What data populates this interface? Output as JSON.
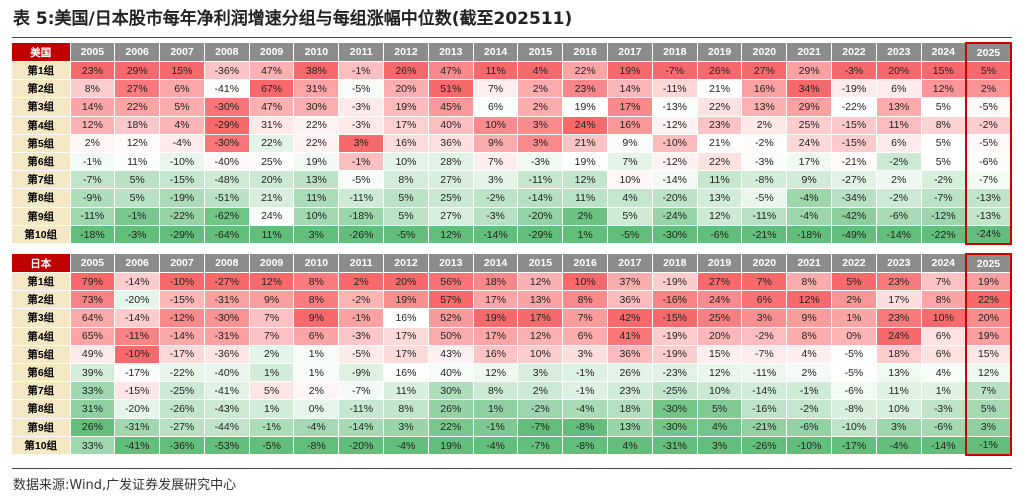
{
  "title": "表 5:美国/日本股市每年净利润增速分组与每组涨幅中位数(截至202511)",
  "years": [
    "2005",
    "2006",
    "2007",
    "2008",
    "2009",
    "2010",
    "2011",
    "2012",
    "2013",
    "2014",
    "2015",
    "2016",
    "2017",
    "2018",
    "2019",
    "2020",
    "2021",
    "2022",
    "2023",
    "2024",
    "2025"
  ],
  "tables": [
    {
      "label": "美国",
      "rows": [
        {
          "label": "第1组",
          "values": [
            23,
            29,
            15,
            -36,
            47,
            38,
            -1,
            26,
            47,
            11,
            4,
            22,
            19,
            -7,
            26,
            27,
            29,
            -3,
            20,
            15,
            5
          ]
        },
        {
          "label": "第2组",
          "values": [
            8,
            27,
            6,
            -41,
            67,
            31,
            -5,
            20,
            51,
            7,
            2,
            23,
            14,
            -11,
            21,
            16,
            34,
            -19,
            6,
            12,
            2
          ]
        },
        {
          "label": "第3组",
          "values": [
            14,
            22,
            5,
            -30,
            47,
            30,
            -3,
            19,
            45,
            6,
            2,
            19,
            17,
            -13,
            22,
            13,
            29,
            -22,
            13,
            5,
            -5
          ]
        },
        {
          "label": "第4组",
          "values": [
            12,
            18,
            4,
            -29,
            31,
            22,
            -3,
            17,
            40,
            10,
            3,
            24,
            16,
            -12,
            23,
            2,
            25,
            -15,
            11,
            8,
            -2
          ]
        },
        {
          "label": "第5组",
          "values": [
            2,
            12,
            -4,
            -30,
            22,
            22,
            3,
            16,
            36,
            9,
            3,
            21,
            9,
            -10,
            21,
            -2,
            24,
            -15,
            6,
            5,
            -5
          ]
        },
        {
          "label": "第6组",
          "values": [
            -1,
            11,
            -10,
            -40,
            25,
            19,
            -1,
            10,
            28,
            7,
            -3,
            19,
            7,
            -12,
            22,
            -3,
            17,
            -21,
            -2,
            5,
            -6
          ]
        },
        {
          "label": "第7组",
          "values": [
            -7,
            5,
            -15,
            -48,
            20,
            13,
            -5,
            8,
            27,
            3,
            -11,
            12,
            10,
            -14,
            11,
            -8,
            9,
            -27,
            2,
            -2,
            -7
          ]
        },
        {
          "label": "第8组",
          "values": [
            -9,
            5,
            -19,
            -51,
            21,
            11,
            -11,
            5,
            25,
            -2,
            -14,
            11,
            4,
            -20,
            13,
            -5,
            -4,
            -34,
            -2,
            -7,
            -13
          ]
        },
        {
          "label": "第9组",
          "values": [
            -11,
            -1,
            -22,
            -62,
            24,
            10,
            -18,
            5,
            27,
            -3,
            -20,
            2,
            5,
            -24,
            12,
            -11,
            -4,
            -42,
            -6,
            -12,
            -13
          ]
        },
        {
          "label": "第10组",
          "values": [
            -18,
            -3,
            -29,
            -64,
            11,
            3,
            -26,
            -5,
            12,
            -14,
            -29,
            1,
            -5,
            -30,
            -6,
            -21,
            -18,
            -49,
            -14,
            -22,
            -24
          ]
        }
      ]
    },
    {
      "label": "日本",
      "rows": [
        {
          "label": "第1组",
          "values": [
            79,
            -14,
            -10,
            -27,
            12,
            8,
            2,
            20,
            56,
            18,
            12,
            10,
            37,
            -19,
            27,
            7,
            8,
            5,
            23,
            7,
            19
          ]
        },
        {
          "label": "第2组",
          "values": [
            73,
            -20,
            -15,
            -31,
            9,
            8,
            -2,
            19,
            57,
            17,
            13,
            8,
            36,
            -16,
            24,
            6,
            12,
            2,
            17,
            8,
            22
          ]
        },
        {
          "label": "第3组",
          "values": [
            64,
            -14,
            -12,
            -30,
            7,
            9,
            -1,
            16,
            52,
            19,
            17,
            7,
            42,
            -15,
            25,
            3,
            9,
            1,
            23,
            10,
            20
          ]
        },
        {
          "label": "第4组",
          "values": [
            65,
            -11,
            -14,
            -31,
            7,
            6,
            -3,
            17,
            50,
            17,
            12,
            6,
            41,
            -19,
            20,
            -2,
            8,
            0,
            24,
            6,
            19
          ]
        },
        {
          "label": "第5组",
          "values": [
            49,
            -10,
            -17,
            -36,
            2,
            1,
            -5,
            17,
            43,
            16,
            10,
            3,
            36,
            -19,
            15,
            -7,
            4,
            -5,
            18,
            6,
            15
          ]
        },
        {
          "label": "第6组",
          "values": [
            39,
            -17,
            -22,
            -40,
            1,
            1,
            -9,
            16,
            40,
            12,
            3,
            -1,
            26,
            -23,
            12,
            -11,
            2,
            -5,
            13,
            4,
            12
          ]
        },
        {
          "label": "第7组",
          "values": [
            33,
            -15,
            -25,
            -41,
            5,
            2,
            -7,
            11,
            30,
            8,
            2,
            -1,
            23,
            -25,
            10,
            -14,
            -1,
            -6,
            11,
            1,
            7
          ]
        },
        {
          "label": "第8组",
          "values": [
            31,
            -20,
            -26,
            -43,
            1,
            0,
            -11,
            8,
            26,
            1,
            -2,
            -4,
            18,
            -30,
            5,
            -16,
            -2,
            -8,
            10,
            -3,
            5
          ]
        },
        {
          "label": "第9组",
          "values": [
            26,
            -31,
            -27,
            -44,
            -1,
            -4,
            -14,
            3,
            22,
            -1,
            -7,
            -8,
            13,
            -30,
            4,
            -21,
            -6,
            -10,
            3,
            -6,
            3
          ]
        },
        {
          "label": "第10组",
          "values": [
            33,
            -41,
            -36,
            -53,
            -5,
            -8,
            -20,
            -4,
            19,
            -4,
            -7,
            -8,
            4,
            -31,
            3,
            -26,
            -10,
            -17,
            -4,
            -14,
            -1
          ]
        }
      ]
    }
  ],
  "colors": {
    "header_bg": "#8c8c8c",
    "corner_bg": "#c00000",
    "row_label_bg": "#f4e7c4",
    "high": "#f8696b",
    "mid": "#ffffff",
    "low": "#63be7b",
    "highlight_border": "#cc0000"
  },
  "source": "数据来源:Wind,广发证券发展研究中心"
}
